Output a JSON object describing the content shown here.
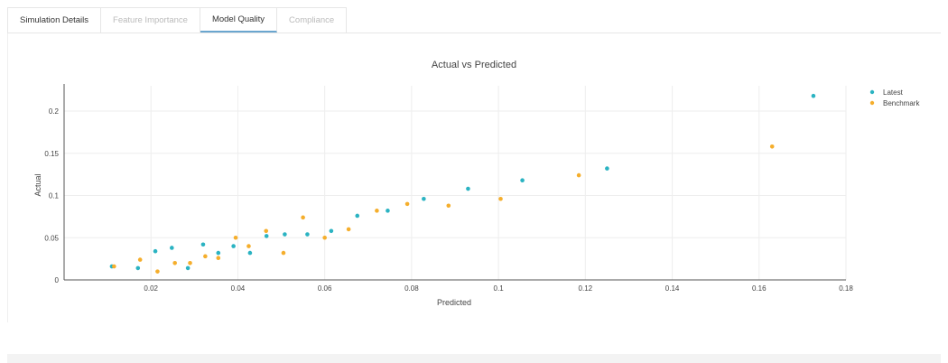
{
  "tabs": [
    {
      "label": "Simulation Details",
      "state": "enabled"
    },
    {
      "label": "Feature Importance",
      "state": "disabled"
    },
    {
      "label": "Model Quality",
      "state": "active"
    },
    {
      "label": "Compliance",
      "state": "disabled"
    }
  ],
  "colors": {
    "latest": "#2bb3c2",
    "benchmark": "#f5ae2c",
    "grid": "#eeeeee",
    "axis": "#555555",
    "text": "#444444",
    "active_tab_underline": "#6aa6cf"
  },
  "chart_data": {
    "type": "scatter",
    "title": "Actual vs Predicted",
    "xlabel": "Predicted",
    "ylabel": "Actual",
    "xlim": [
      0.0,
      0.18
    ],
    "ylim": [
      0.0,
      0.23
    ],
    "xticks": [
      0.02,
      0.04,
      0.06,
      0.08,
      0.1,
      0.12,
      0.14,
      0.16,
      0.18
    ],
    "xtick_labels": [
      "0.02",
      "0.04",
      "0.06",
      "0.08",
      "0.1",
      "0.12",
      "0.14",
      "0.16",
      "0.18"
    ],
    "yticks": [
      0,
      0.05,
      0.1,
      0.15,
      0.2
    ],
    "ytick_labels": [
      "0",
      "0.05",
      "0.1",
      "0.15",
      "0.2"
    ],
    "grid": true,
    "legend_position": "top-right",
    "series": [
      {
        "name": "Latest",
        "x": [
          0.011,
          0.017,
          0.021,
          0.0248,
          0.0285,
          0.032,
          0.0355,
          0.039,
          0.0428,
          0.0466,
          0.0508,
          0.056,
          0.0615,
          0.0675,
          0.0745,
          0.0828,
          0.093,
          0.1055,
          0.125,
          0.1725
        ],
        "y": [
          0.016,
          0.014,
          0.034,
          0.038,
          0.014,
          0.042,
          0.032,
          0.04,
          0.032,
          0.052,
          0.054,
          0.054,
          0.058,
          0.076,
          0.082,
          0.096,
          0.108,
          0.118,
          0.132,
          0.218
        ]
      },
      {
        "name": "Benchmark",
        "x": [
          0.0115,
          0.0175,
          0.0215,
          0.0255,
          0.029,
          0.0325,
          0.0355,
          0.0395,
          0.0425,
          0.0465,
          0.0505,
          0.055,
          0.06,
          0.0655,
          0.072,
          0.079,
          0.0885,
          0.1005,
          0.1185,
          0.163
        ],
        "y": [
          0.016,
          0.024,
          0.01,
          0.02,
          0.02,
          0.028,
          0.026,
          0.05,
          0.04,
          0.058,
          0.032,
          0.074,
          0.05,
          0.06,
          0.082,
          0.09,
          0.088,
          0.096,
          0.124,
          0.158
        ]
      }
    ]
  }
}
